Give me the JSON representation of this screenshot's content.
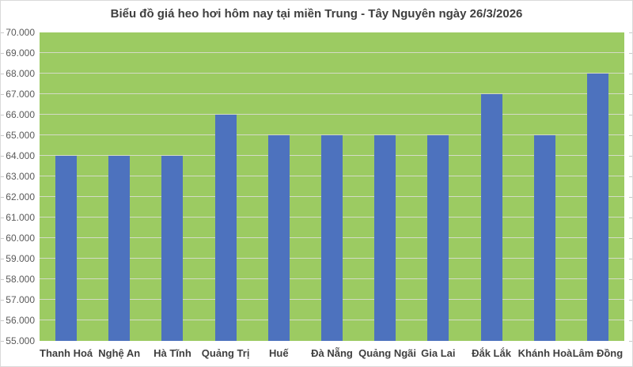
{
  "chart_data": {
    "type": "bar",
    "title": "Biểu đồ giá heo hơi hôm nay tại miền Trung - Tây Nguyên ngày 26/3/2026",
    "categories": [
      "Thanh Hoá",
      "Nghệ An",
      "Hà Tĩnh",
      "Quảng Trị",
      "Huế",
      "Đà Nẵng",
      "Quảng Ngãi",
      "Gia Lai",
      "Đắk Lắk",
      "Khánh Hoà",
      "Lâm Đồng"
    ],
    "values": [
      64000,
      64000,
      64000,
      66000,
      65000,
      65000,
      65000,
      65000,
      67000,
      65000,
      68000
    ],
    "xlabel": "",
    "ylabel": "",
    "ylim": [
      55000,
      70000
    ],
    "ytick_step": 1000,
    "ytick_labels_top_down": [
      "70.000",
      "69.000",
      "68.000",
      "67.000",
      "66.000",
      "65.000",
      "64.000",
      "63.000",
      "62.000",
      "61.000",
      "60.000",
      "59.000",
      "58.000",
      "57.000",
      "56.000",
      "55.000"
    ],
    "grid": true,
    "legend_position": "none",
    "colors": {
      "bar": "#4d72be",
      "plot_background": "#9ccb62",
      "gridline": "#d4dbc6",
      "title_text": "#3f3f3f",
      "axis_tick_text": "#595959",
      "category_text": "#3f3f3f",
      "frame_border": "#d9d9d9"
    }
  }
}
